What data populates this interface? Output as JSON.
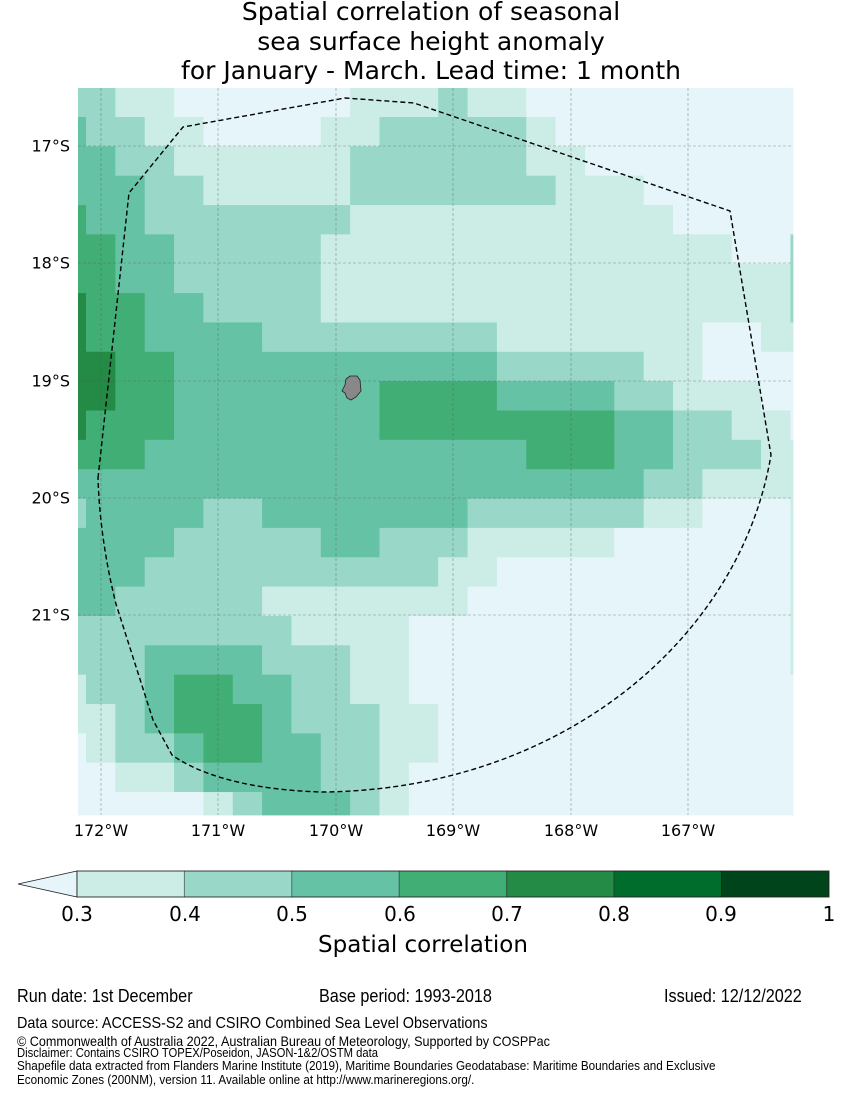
{
  "title": {
    "lines": [
      "Spatial correlation of seasonal",
      "sea surface height anomaly",
      "for January - March. Lead time: 1 month"
    ]
  },
  "axes": {
    "lat_ticks": [
      "17°S",
      "18°S",
      "19°S",
      "20°S",
      "21°S"
    ],
    "lon_ticks": [
      "172°W",
      "171°W",
      "170°W",
      "169°W",
      "168°W",
      "167°W"
    ]
  },
  "colorbar": {
    "ticks": [
      "0.3",
      "0.4",
      "0.5",
      "0.6",
      "0.7",
      "0.8",
      "0.9",
      "1"
    ],
    "label": "Spatial correlation",
    "under_color": "#e5f5f9",
    "colors": [
      "#ccece6",
      "#99d8c9",
      "#66c2a4",
      "#41ae76",
      "#238b45",
      "#006d2c",
      "#00441b"
    ]
  },
  "footer": {
    "run_date": "Run date: 1st December",
    "base_period": "Base period: 1993-2018",
    "issued": "Issued: 12/12/2022",
    "data_source": "Data source: ACCESS-S2 and CSIRO Combined Sea Level Observations",
    "copyright": "© Commonwealth of Australia 2022, Australian Bureau of Meteorology, Supported by COSPPac",
    "disclaimer": "Disclaimer: Contains CSIRO TOPEX/Poseidon, JASON-1&2/OSTM data",
    "shapefile_1": "Shapefile data extracted from Flanders Marine Institute (2019), Maritime Boundaries Geodatabase: Maritime Boundaries and Exclusive",
    "shapefile_2": "Economic Zones (200NM), version 11. Available online at http://www.marineregions.org/."
  },
  "chart_data": {
    "type": "heatmap",
    "title": "Spatial correlation of seasonal sea surface height anomaly for January - March. Lead time: 1 month",
    "value_meaning": "bin index: 0 = <0.3, 1 = 0.3-0.4, 2 = 0.4-0.5, 3 = 0.5-0.6, 4 = 0.6-0.7, 5 = 0.7-0.8",
    "bins": [
      0.3,
      0.4,
      0.5,
      0.6,
      0.7,
      0.8,
      0.9,
      1.0
    ],
    "lon_range": [
      -172.2,
      -166.2
    ],
    "lat_range": [
      -22.7,
      -16.5
    ],
    "cell_size_deg": 0.25,
    "grid": [
      [
        2,
        2,
        1,
        1,
        0,
        0,
        0,
        0,
        0,
        0,
        1,
        1,
        1,
        2,
        1,
        1,
        0,
        0,
        0,
        0,
        0,
        0,
        0,
        0,
        0,
        0
      ],
      [
        3,
        2,
        2,
        1,
        1,
        0,
        0,
        0,
        0,
        1,
        1,
        2,
        2,
        2,
        2,
        2,
        1,
        0,
        0,
        0,
        0,
        0,
        0,
        0,
        0,
        0
      ],
      [
        3,
        3,
        2,
        2,
        1,
        1,
        1,
        1,
        1,
        1,
        2,
        2,
        2,
        2,
        2,
        2,
        1,
        1,
        0,
        0,
        0,
        0,
        0,
        0,
        0,
        0
      ],
      [
        3,
        3,
        3,
        2,
        2,
        1,
        1,
        1,
        1,
        1,
        2,
        2,
        2,
        2,
        2,
        2,
        2,
        1,
        1,
        1,
        0,
        0,
        0,
        0,
        0,
        0
      ],
      [
        4,
        3,
        3,
        2,
        2,
        2,
        2,
        2,
        2,
        2,
        1,
        1,
        1,
        1,
        1,
        1,
        1,
        1,
        1,
        1,
        1,
        0,
        0,
        0,
        0,
        0
      ],
      [
        4,
        4,
        3,
        3,
        2,
        2,
        2,
        2,
        2,
        1,
        1,
        1,
        1,
        1,
        1,
        1,
        1,
        1,
        1,
        1,
        1,
        1,
        1,
        0,
        0,
        2
      ],
      [
        4,
        4,
        3,
        3,
        2,
        2,
        2,
        2,
        2,
        1,
        1,
        1,
        1,
        1,
        1,
        1,
        1,
        1,
        1,
        1,
        1,
        1,
        1,
        1,
        1,
        2
      ],
      [
        5,
        4,
        4,
        3,
        3,
        2,
        2,
        2,
        2,
        1,
        1,
        1,
        1,
        1,
        1,
        1,
        1,
        1,
        1,
        1,
        1,
        1,
        1,
        1,
        1,
        2
      ],
      [
        5,
        4,
        4,
        3,
        3,
        3,
        3,
        2,
        2,
        2,
        2,
        2,
        2,
        2,
        2,
        1,
        1,
        1,
        1,
        1,
        1,
        1,
        0,
        0,
        1,
        1
      ],
      [
        5,
        5,
        4,
        4,
        3,
        3,
        3,
        3,
        3,
        3,
        3,
        3,
        3,
        3,
        3,
        2,
        2,
        2,
        2,
        2,
        1,
        1,
        0,
        0,
        0,
        0
      ],
      [
        5,
        5,
        4,
        4,
        3,
        3,
        3,
        3,
        3,
        3,
        3,
        4,
        4,
        4,
        4,
        3,
        3,
        3,
        3,
        2,
        2,
        1,
        1,
        1,
        0,
        0
      ],
      [
        5,
        4,
        4,
        4,
        3,
        3,
        3,
        3,
        3,
        3,
        3,
        4,
        4,
        4,
        4,
        4,
        4,
        4,
        4,
        3,
        3,
        2,
        2,
        1,
        1,
        0
      ],
      [
        4,
        4,
        4,
        3,
        3,
        3,
        3,
        3,
        3,
        3,
        3,
        3,
        3,
        3,
        3,
        3,
        4,
        4,
        4,
        3,
        3,
        2,
        2,
        2,
        1,
        1
      ],
      [
        3,
        3,
        3,
        3,
        3,
        3,
        3,
        3,
        3,
        3,
        3,
        3,
        3,
        3,
        3,
        3,
        3,
        3,
        3,
        3,
        2,
        2,
        1,
        1,
        1,
        1
      ],
      [
        2,
        3,
        3,
        3,
        3,
        2,
        2,
        3,
        3,
        3,
        3,
        3,
        3,
        3,
        2,
        2,
        2,
        2,
        2,
        2,
        1,
        1,
        0,
        0,
        0,
        1
      ],
      [
        3,
        3,
        3,
        3,
        2,
        2,
        2,
        2,
        2,
        3,
        3,
        2,
        2,
        2,
        1,
        1,
        1,
        1,
        1,
        0,
        0,
        0,
        0,
        0,
        0,
        1
      ],
      [
        3,
        3,
        3,
        2,
        2,
        2,
        2,
        2,
        2,
        2,
        2,
        2,
        2,
        1,
        1,
        0,
        0,
        0,
        0,
        0,
        0,
        0,
        0,
        0,
        0,
        1
      ],
      [
        3,
        3,
        2,
        2,
        2,
        2,
        2,
        1,
        1,
        1,
        1,
        1,
        1,
        1,
        0,
        0,
        0,
        0,
        0,
        0,
        0,
        0,
        0,
        0,
        0,
        1
      ],
      [
        2,
        2,
        2,
        2,
        2,
        2,
        2,
        2,
        1,
        1,
        1,
        1,
        0,
        0,
        0,
        0,
        0,
        0,
        0,
        0,
        0,
        0,
        0,
        0,
        0,
        1
      ],
      [
        2,
        2,
        2,
        3,
        3,
        3,
        3,
        2,
        2,
        2,
        1,
        1,
        0,
        0,
        0,
        0,
        0,
        0,
        0,
        0,
        0,
        0,
        0,
        0,
        0,
        1
      ],
      [
        1,
        2,
        2,
        3,
        4,
        4,
        3,
        3,
        2,
        2,
        1,
        1,
        0,
        0,
        0,
        0,
        0,
        0,
        0,
        0,
        0,
        0,
        0,
        0,
        0,
        0
      ],
      [
        1,
        1,
        2,
        3,
        4,
        4,
        4,
        3,
        2,
        2,
        2,
        1,
        1,
        0,
        0,
        0,
        0,
        0,
        0,
        0,
        0,
        0,
        0,
        0,
        0,
        0
      ],
      [
        0,
        1,
        2,
        2,
        3,
        4,
        4,
        3,
        3,
        2,
        2,
        1,
        1,
        0,
        0,
        0,
        0,
        0,
        0,
        0,
        0,
        0,
        0,
        0,
        0,
        0
      ],
      [
        0,
        0,
        1,
        1,
        2,
        3,
        3,
        3,
        3,
        2,
        2,
        1,
        0,
        0,
        0,
        0,
        0,
        0,
        0,
        0,
        0,
        0,
        0,
        0,
        0,
        0
      ],
      [
        0,
        0,
        0,
        0,
        0,
        1,
        2,
        3,
        3,
        3,
        2,
        1,
        0,
        0,
        0,
        0,
        0,
        0,
        0,
        0,
        0,
        0,
        0,
        0,
        0,
        0
      ]
    ],
    "level_colors": [
      "#e5f5f9",
      "#ccece6",
      "#99d8c9",
      "#66c2a4",
      "#41ae76",
      "#238b45",
      "#006d2c",
      "#00441b"
    ],
    "xlabel": "",
    "ylabel": "",
    "grid_lines": true
  }
}
